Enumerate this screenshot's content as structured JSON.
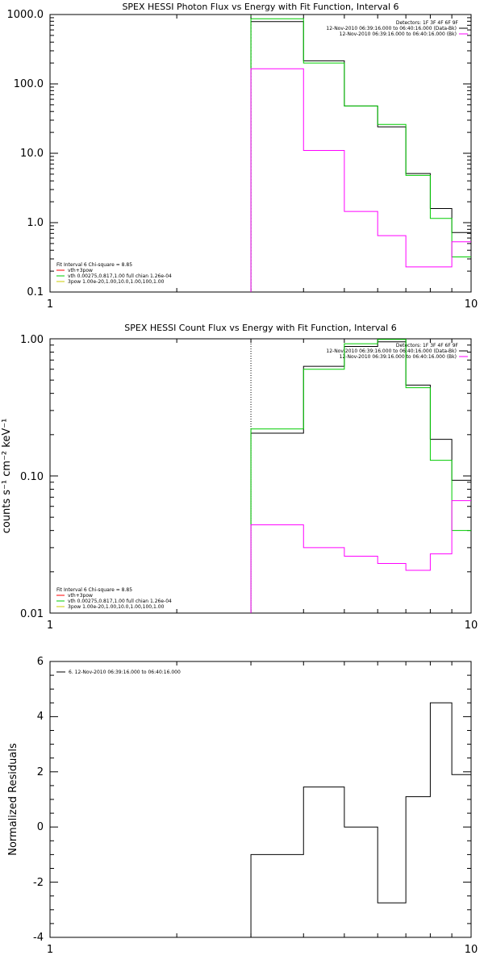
{
  "chart_data": [
    {
      "type": "line",
      "title": "SPEX HESSI Photon Flux vs Energy with Fit Function, Interval 6",
      "ylabel": "",
      "xscale": "log",
      "yscale": "log",
      "xlim": [
        1,
        10
      ],
      "ylim": [
        0.1,
        1000
      ],
      "x_ticks": [
        "1",
        "10"
      ],
      "y_ticks": [
        "0.1",
        "1.0",
        "10.0",
        "100.0",
        "1000.0"
      ],
      "legend_top_right": [
        {
          "text": "Detectors: 1F 3F 4F 6F 9F",
          "color": ""
        },
        {
          "text": "12-Nov-2010 06:39:16.000 to 06:40:16.000 (Data-Bk)",
          "color": "#000000"
        },
        {
          "text": "12-Nov-2010 06:39:16.000 to 06:40:16.000 (Bk)",
          "color": "#ff00ff"
        }
      ],
      "legend_bottom_left": [
        {
          "text": "Fit Interval 6   Chi-square = 8.85",
          "color": ""
        },
        {
          "text": "vth+3pow",
          "color": "#ff0000"
        },
        {
          "text": "vth 0.00275,0.817,1.00  full chian 1.26e-04",
          "color": "#00cc00"
        },
        {
          "text": "3pow 1.00e-20,1.00,10.0,1.00,100,1.00",
          "color": "#cccc00"
        }
      ],
      "edges": [
        3,
        4,
        5,
        6,
        7,
        8,
        9,
        10
      ],
      "series": [
        {
          "name": "Data-Bk",
          "color": "#000000",
          "values": [
            790,
            215,
            48,
            24,
            5.1,
            1.6,
            0.72
          ]
        },
        {
          "name": "vth",
          "color": "#00cc00",
          "values": [
            870,
            200,
            48,
            26,
            4.8,
            1.15,
            0.32
          ]
        },
        {
          "name": "Bk",
          "color": "#ff00ff",
          "values": [
            165,
            11,
            1.45,
            0.65,
            0.23,
            0.23,
            0.53
          ]
        }
      ],
      "vline": {
        "x": 3,
        "style": "green-dotted"
      }
    },
    {
      "type": "line",
      "title": "SPEX HESSI Count Flux vs Energy with Fit Function, Interval 6",
      "ylabel": "counts s⁻¹ cm⁻² keV⁻¹",
      "xscale": "log",
      "yscale": "log",
      "xlim": [
        1,
        10
      ],
      "ylim": [
        0.01,
        1.0
      ],
      "x_ticks": [
        "1",
        "10"
      ],
      "y_ticks": [
        "0.01",
        "0.10",
        "1.00"
      ],
      "legend_top_right": [
        {
          "text": "Detectors: 1F 3F 4F 6F 9F",
          "color": ""
        },
        {
          "text": "12-Nov-2010 06:39:16.000 to 06:40:16.000 (Data-Bk)",
          "color": "#000000"
        },
        {
          "text": "12-Nov-2010 06:39:16.000 to 06:40:16.000 (Bk)",
          "color": "#ff00ff"
        }
      ],
      "legend_bottom_left": [
        {
          "text": "Fit Interval 6   Chi-square = 8.85",
          "color": ""
        },
        {
          "text": "vth+3pow",
          "color": "#ff0000"
        },
        {
          "text": "vth 0.00275,0.817,1.00  full chian 1.26e-04",
          "color": "#00cc00"
        },
        {
          "text": "3pow 1.00e-20,1.00,10.0,1.00,100,1.00",
          "color": "#cccc00"
        }
      ],
      "edges": [
        3,
        4,
        5,
        6,
        7,
        8,
        9,
        10
      ],
      "series": [
        {
          "name": "Data-Bk",
          "color": "#000000",
          "values": [
            0.205,
            0.63,
            0.88,
            0.95,
            0.46,
            0.185,
            0.093
          ]
        },
        {
          "name": "vth",
          "color": "#00cc00",
          "values": [
            0.22,
            0.6,
            0.92,
            0.99,
            0.44,
            0.13,
            0.04
          ]
        },
        {
          "name": "Bk",
          "color": "#ff00ff",
          "values": [
            0.044,
            0.03,
            0.026,
            0.023,
            0.0205,
            0.027,
            0.066
          ]
        }
      ],
      "vline": {
        "x": 3,
        "style": "black-dotted"
      }
    },
    {
      "type": "line",
      "title": "",
      "ylabel": "Normalized Residuals",
      "xscale": "log",
      "yscale": "linear",
      "xlim": [
        1,
        10
      ],
      "ylim": [
        -4,
        6
      ],
      "x_ticks": [
        "1",
        "10"
      ],
      "y_ticks": [
        "-4",
        "-2",
        "0",
        "2",
        "4",
        "6"
      ],
      "legend_top_left": [
        {
          "text": "6. 12-Nov-2010 06:39:16.000 to 06:40:16.000",
          "color": "#000000"
        }
      ],
      "edges": [
        3,
        4,
        5,
        6,
        7,
        8,
        9,
        10
      ],
      "series": [
        {
          "name": "",
          "color": "#000000",
          "values": [
            -1.0,
            1.45,
            0.0,
            -2.75,
            1.1,
            4.5,
            1.9
          ]
        }
      ]
    }
  ]
}
